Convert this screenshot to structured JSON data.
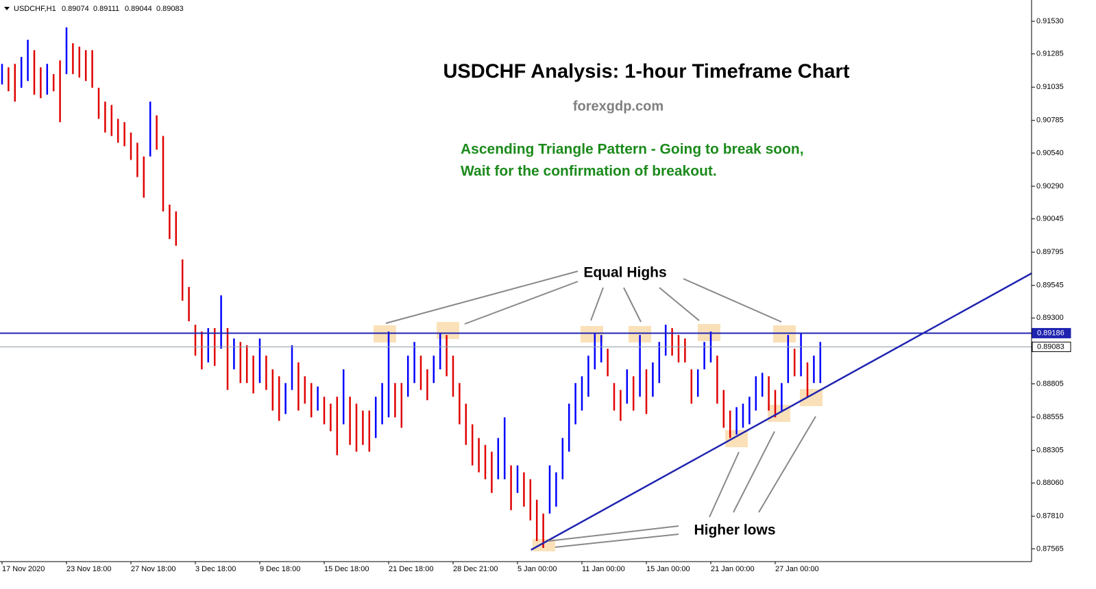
{
  "chart_data": {
    "type": "ohlc",
    "symbol": "USDCHF,H1",
    "quote": [
      0.89074,
      0.89111,
      0.89044,
      0.89083
    ],
    "title": "USDCHF Analysis: 1-hour Timeframe Chart",
    "subtitle": "forexgdp.com",
    "notes": [
      "Ascending Triangle Pattern - Going to break soon,",
      "Wait for the confirmation of breakout."
    ],
    "annotations": [
      "Equal Highs",
      "Higher lows"
    ],
    "up_color": "#0000ff",
    "down_color": "#e00000",
    "categories": [
      "17 Nov 2020",
      null,
      null,
      null,
      null,
      null,
      null,
      null,
      null,
      null,
      "23 Nov 18:00",
      null,
      null,
      null,
      null,
      null,
      null,
      null,
      null,
      null,
      "27 Nov 18:00",
      null,
      null,
      null,
      null,
      null,
      null,
      null,
      null,
      null,
      "3 Dec 18:00",
      null,
      null,
      null,
      null,
      null,
      null,
      null,
      null,
      null,
      "9 Dec 18:00",
      null,
      null,
      null,
      null,
      null,
      null,
      null,
      null,
      null,
      "15 Dec 18:00",
      null,
      null,
      null,
      null,
      null,
      null,
      null,
      null,
      null,
      "21 Dec 18:00",
      null,
      null,
      null,
      null,
      null,
      null,
      null,
      null,
      null,
      "28 Dec 21:00",
      null,
      null,
      null,
      null,
      null,
      null,
      null,
      null,
      null,
      "5 Jan 00:00",
      null,
      null,
      null,
      null,
      null,
      null,
      null,
      null,
      null,
      "11 Jan 00:00",
      null,
      null,
      null,
      null,
      null,
      null,
      null,
      null,
      null,
      "15 Jan 00:00",
      null,
      null,
      null,
      null,
      null,
      null,
      null,
      null,
      null,
      "21 Jan 00:00",
      null,
      null,
      null,
      null,
      null,
      null,
      null,
      null,
      null,
      "27 Jan 00:00",
      null,
      null,
      null,
      null,
      null,
      null,
      null
    ],
    "high": [
      0.9121,
      0.91184,
      0.9121,
      0.91262,
      0.91391,
      0.91313,
      0.91184,
      0.9121,
      0.91133,
      0.91236,
      0.91484,
      0.91365,
      0.91339,
      0.91313,
      0.91313,
      0.9103,
      0.90926,
      0.90901,
      0.90797,
      0.90772,
      0.90694,
      0.90617,
      0.90514,
      0.90926,
      0.90823,
      0.90668,
      0.90152,
      0.90101,
      0.8974,
      0.89533,
      0.89249,
      0.89198,
      0.89224,
      0.89224,
      0.8947,
      0.89224,
      0.89146,
      0.8912,
      0.89095,
      0.89017,
      0.89146,
      0.89017,
      0.88914,
      0.88862,
      0.88811,
      0.89095,
      0.88966,
      0.88862,
      0.88811,
      0.88785,
      0.88708,
      0.88656,
      0.88708,
      0.88914,
      0.88708,
      0.88656,
      0.88604,
      0.88604,
      0.88708,
      0.88811,
      0.89198,
      0.88811,
      0.88811,
      0.89017,
      0.8912,
      0.89017,
      0.88914,
      0.89017,
      0.89187,
      0.89172,
      0.89017,
      0.88811,
      0.88656,
      0.88501,
      0.88398,
      0.88346,
      0.88295,
      0.88398,
      0.88553,
      0.88192,
      0.88192,
      0.8814,
      0.88088,
      0.87934,
      0.8783,
      0.88192,
      0.8814,
      0.88398,
      0.88656,
      0.88811,
      0.88862,
      0.89017,
      0.89182,
      0.89172,
      0.89069,
      0.88811,
      0.88759,
      0.88914,
      0.88862,
      0.89172,
      0.88914,
      0.88966,
      0.8912,
      0.89249,
      0.89224,
      0.89172,
      0.89146,
      0.88914,
      0.88914,
      0.8912,
      0.89198,
      0.89017,
      0.88759,
      0.88604,
      0.8863,
      0.88656,
      0.88708,
      0.88862,
      0.88888,
      0.88862,
      0.88759,
      0.88811,
      0.89172,
      0.89069,
      0.89187,
      0.88966,
      0.89017,
      0.8912
    ],
    "low": [
      0.91055,
      0.91004,
      0.90926,
      0.9103,
      0.91081,
      0.90978,
      0.90952,
      0.90978,
      0.91004,
      0.90772,
      0.91133,
      0.91133,
      0.91107,
      0.91081,
      0.9103,
      0.90797,
      0.90694,
      0.90668,
      0.90617,
      0.90591,
      0.90488,
      0.90359,
      0.90204,
      0.90514,
      0.90565,
      0.90101,
      0.89894,
      0.89843,
      0.8943,
      0.89275,
      0.89017,
      0.88914,
      0.88966,
      0.8894,
      0.89069,
      0.88759,
      0.88914,
      0.88811,
      0.88811,
      0.88733,
      0.88811,
      0.88759,
      0.88604,
      0.88527,
      0.88578,
      0.88759,
      0.88604,
      0.88656,
      0.88553,
      0.88604,
      0.88501,
      0.88449,
      0.88269,
      0.88501,
      0.88346,
      0.88295,
      0.88346,
      0.88295,
      0.88398,
      0.88501,
      0.88553,
      0.88553,
      0.88475,
      0.88708,
      0.88811,
      0.88759,
      0.88682,
      0.88811,
      0.88914,
      0.88862,
      0.88708,
      0.88501,
      0.88346,
      0.88192,
      0.8814,
      0.88088,
      0.87985,
      0.88088,
      0.88088,
      0.87856,
      0.87985,
      0.87882,
      0.87779,
      0.87624,
      0.87572,
      0.8783,
      0.87882,
      0.88088,
      0.88295,
      0.88501,
      0.88604,
      0.88708,
      0.88914,
      0.88966,
      0.88862,
      0.88604,
      0.88527,
      0.88656,
      0.88604,
      0.88708,
      0.88578,
      0.88708,
      0.88811,
      0.89017,
      0.89017,
      0.88966,
      0.88966,
      0.88656,
      0.88708,
      0.88914,
      0.88966,
      0.88656,
      0.88475,
      0.88398,
      0.88424,
      0.88475,
      0.88501,
      0.88604,
      0.88708,
      0.88604,
      0.88553,
      0.88604,
      0.88811,
      0.88862,
      0.88862,
      0.88708,
      0.88811,
      0.88811
    ],
    "levels": [
      {
        "value": 0.89186,
        "color": "#1f24b0"
      },
      {
        "value": 0.89083,
        "color": "#8c9ca4"
      }
    ],
    "trendline": {
      "x": [
        82.1,
        159.8
      ],
      "y": [
        0.87557,
        0.89636
      ],
      "color": "#1f24b0"
    },
    "ylim": [
      0.87469,
      0.9169
    ],
    "yticks": [
      {
        "value": 0.9153,
        "label": "0.91530"
      },
      {
        "value": 0.91285,
        "label": "0.91285"
      },
      {
        "value": 0.91035,
        "label": "0.91035"
      },
      {
        "value": 0.90785,
        "label": "0.90785"
      },
      {
        "value": 0.9054,
        "label": "0.90540"
      },
      {
        "value": 0.9029,
        "label": "0.90290"
      },
      {
        "value": 0.90045,
        "label": "0.90045"
      },
      {
        "value": 0.89795,
        "label": "0.89795"
      },
      {
        "value": 0.89545,
        "label": "0.89545"
      },
      {
        "value": 0.893,
        "label": "0.89300"
      },
      {
        "value": 0.88805,
        "label": "0.88805"
      },
      {
        "value": 0.88555,
        "label": "0.88555"
      },
      {
        "value": 0.88305,
        "label": "0.88305"
      },
      {
        "value": 0.8806,
        "label": "0.88060"
      },
      {
        "value": 0.8781,
        "label": "0.87810"
      },
      {
        "value": 0.87565,
        "label": "0.87565"
      }
    ]
  }
}
